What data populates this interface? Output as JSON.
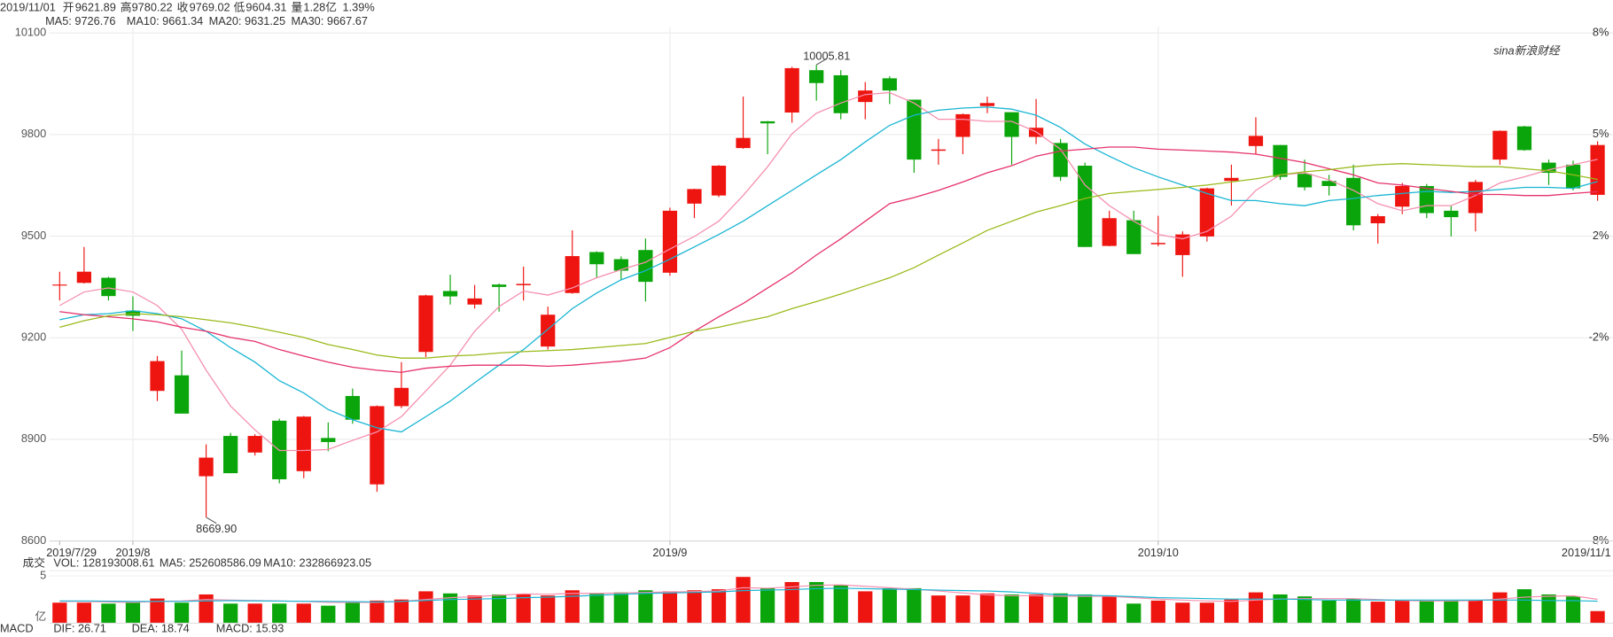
{
  "chart_data": {
    "type": "candlestick",
    "header": [
      {
        "text": "2019/11/01",
        "color": "#333333"
      },
      {
        "text": "开",
        "color": "#333333"
      },
      {
        "text": "9621.89",
        "color": "#0a9a0a"
      },
      {
        "text": "高",
        "color": "#333333"
      },
      {
        "text": "9780.22",
        "color": "#e8110f"
      },
      {
        "text": "收",
        "color": "#333333"
      },
      {
        "text": "9769.02",
        "color": "#e8110f"
      },
      {
        "text": "低",
        "color": "#333333"
      },
      {
        "text": "9604.31",
        "color": "#0a9a0a"
      },
      {
        "text": "量",
        "color": "#333333"
      },
      {
        "text": "1.28亿",
        "color": "#e8110f"
      },
      {
        "text": "1.39%",
        "color": "#e8110f"
      }
    ],
    "watermark": "sina新浪财经",
    "categories": [
      "2019/7/29",
      null,
      null,
      "2019/8",
      null,
      null,
      null,
      null,
      null,
      null,
      null,
      null,
      null,
      null,
      null,
      null,
      null,
      null,
      null,
      null,
      null,
      null,
      null,
      null,
      null,
      "2019/9",
      null,
      null,
      null,
      null,
      null,
      null,
      null,
      null,
      null,
      null,
      null,
      null,
      null,
      null,
      null,
      null,
      null,
      null,
      null,
      "2019/10",
      null,
      null,
      null,
      null,
      null,
      null,
      null,
      null,
      null,
      null,
      null,
      null,
      null,
      null,
      null,
      null,
      null,
      "2019/11/1"
    ],
    "month_lines": [
      3,
      25,
      45
    ],
    "open": [
      9355,
      9362,
      9377,
      9280,
      9043,
      9089,
      8791,
      8910,
      8861,
      8955,
      8806,
      8904,
      9028,
      8767,
      8998,
      9158,
      9338,
      9298,
      9357,
      9355,
      9174,
      9332,
      9453,
      9432,
      9459,
      9392,
      9596,
      9620,
      9760,
      9839,
      9865,
      9990,
      9975,
      9896,
      9966,
      9903,
      9752,
      9793,
      9884,
      9866,
      9793,
      9775,
      9708,
      9471,
      9547,
      9476,
      9444,
      9499,
      9663,
      9766,
      9769,
      9684,
      9663,
      9672,
      9538,
      9587,
      9648,
      9575,
      9568,
      9726,
      9824,
      9717,
      9711,
      9621.89
    ],
    "high": [
      9395,
      9468,
      9380,
      9322,
      9146,
      9162,
      8885,
      8919,
      8915,
      8961,
      8969,
      8950,
      9050,
      9000,
      9128,
      9327,
      9386,
      9356,
      9360,
      9410,
      9292,
      9517,
      9455,
      9440,
      9493,
      9584,
      9640,
      9710,
      9912,
      9840,
      10000,
      10005.81,
      9990,
      9955,
      9972,
      9903,
      9787,
      9862,
      9912,
      9866,
      9905,
      9787,
      9717,
      9575,
      9575,
      9560,
      9514,
      9643,
      9711,
      9851,
      9769,
      9726,
      9681,
      9711,
      9565,
      9657,
      9654,
      9590,
      9666,
      9812,
      9826,
      9726,
      9723,
      9780.22
    ],
    "low": [
      9310,
      9360,
      9310,
      9220,
      9013,
      8976,
      8669.9,
      8800,
      8852,
      8770,
      8785,
      8865,
      8946,
      8745,
      8992,
      9143,
      9298,
      9286,
      9277,
      9310,
      9165,
      9330,
      9377,
      9371,
      9307,
      9383,
      9553,
      9615,
      9758,
      9742,
      9835,
      9900,
      9845,
      9845,
      9890,
      9687,
      9711,
      9742,
      9863,
      9711,
      9772,
      9663,
      9468,
      9470,
      9447,
      9470,
      9380,
      9484,
      9590,
      9742,
      9666,
      9635,
      9620,
      9517,
      9478,
      9565,
      9553,
      9499,
      9514,
      9711,
      9752,
      9651,
      9635,
      9604.31
    ],
    "close": [
      9357,
      9395,
      9323,
      9265,
      9131,
      8976,
      8846,
      8800,
      8910,
      8782,
      8967,
      8892,
      8958,
      8998,
      9052,
      9325,
      9322,
      9316,
      9350,
      9359,
      9268,
      9441,
      9417,
      9398,
      9365,
      9575,
      9639,
      9708,
      9790,
      9833,
      9996,
      9952,
      9863,
      9930,
      9930,
      9726,
      9756,
      9860,
      9893,
      9793,
      9820,
      9675,
      9468,
      9553,
      9447,
      9480,
      9505,
      9641,
      9672,
      9796,
      9675,
      9644,
      9648,
      9532,
      9559,
      9648,
      9568,
      9556,
      9660,
      9811,
      9754,
      9687,
      9641,
      9769.02
    ],
    "up_color": "#ee1510",
    "down_color": "#0aa50a",
    "ma_lines": [
      {
        "legend": "MA5: 9726.76",
        "color": "#f58fae",
        "values": [
          9295,
          9335,
          9347,
          9335,
          9295,
          9225,
          9104,
          8998,
          8928,
          8867,
          8867,
          8870,
          8897,
          8922,
          8967,
          9043,
          9119,
          9219,
          9292,
          9338,
          9326,
          9347,
          9377,
          9401,
          9423,
          9462,
          9499,
          9544,
          9620,
          9705,
          9802,
          9863,
          9893,
          9918,
          9924,
          9893,
          9845,
          9845,
          9839,
          9839,
          9808,
          9757,
          9651,
          9590,
          9544,
          9505,
          9492,
          9514,
          9559,
          9635,
          9681,
          9687,
          9666,
          9635,
          9596,
          9575,
          9590,
          9590,
          9620,
          9657,
          9675,
          9696,
          9711,
          9726.76
        ]
      },
      {
        "legend": "MA10: 9661.34",
        "color": "#17b5d3",
        "values": [
          9253,
          9268,
          9271,
          9280,
          9271,
          9256,
          9219,
          9171,
          9128,
          9073,
          9037,
          8988,
          8958,
          8934,
          8922,
          8967,
          9013,
          9067,
          9119,
          9165,
          9225,
          9286,
          9332,
          9371,
          9398,
          9432,
          9468,
          9505,
          9544,
          9590,
          9635,
          9681,
          9726,
          9778,
          9827,
          9857,
          9872,
          9878,
          9881,
          9875,
          9857,
          9821,
          9772,
          9736,
          9702,
          9675,
          9651,
          9626,
          9605,
          9605,
          9596,
          9590,
          9605,
          9611,
          9620,
          9626,
          9632,
          9629,
          9632,
          9638,
          9644,
          9644,
          9641,
          9661.34
        ]
      },
      {
        "legend": "MA20: 9631.25",
        "color": "#e5316a",
        "values": [
          9277,
          9268,
          9262,
          9256,
          9247,
          9231,
          9219,
          9201,
          9189,
          9165,
          9146,
          9128,
          9113,
          9104,
          9098,
          9110,
          9116,
          9119,
          9119,
          9119,
          9116,
          9119,
          9125,
          9131,
          9140,
          9171,
          9219,
          9262,
          9301,
          9347,
          9392,
          9444,
          9492,
          9544,
          9596,
          9614,
          9635,
          9660,
          9687,
          9708,
          9736,
          9751,
          9757,
          9763,
          9763,
          9757,
          9754,
          9751,
          9748,
          9742,
          9730,
          9717,
          9699,
          9681,
          9657,
          9651,
          9641,
          9632,
          9623,
          9623,
          9620,
          9620,
          9626,
          9631.25
        ]
      },
      {
        "legend": "MA30: 9667.67",
        "color": "#9aba1c",
        "values": [
          9231,
          9250,
          9265,
          9271,
          9268,
          9262,
          9253,
          9244,
          9231,
          9216,
          9201,
          9180,
          9165,
          9149,
          9140,
          9140,
          9146,
          9149,
          9155,
          9159,
          9162,
          9165,
          9171,
          9177,
          9183,
          9201,
          9219,
          9231,
          9247,
          9262,
          9286,
          9307,
          9329,
          9353,
          9377,
          9407,
          9444,
          9480,
          9517,
          9544,
          9571,
          9590,
          9611,
          9626,
          9632,
          9638,
          9644,
          9651,
          9660,
          9669,
          9681,
          9690,
          9696,
          9705,
          9711,
          9714,
          9711,
          9708,
          9705,
          9705,
          9699,
          9693,
          9681,
          9667.67
        ]
      }
    ],
    "annotations": {
      "high": "10005.81",
      "low": "8669.90"
    },
    "ylim": [
      8600,
      10100
    ],
    "yticks": [
      8600,
      8900,
      9200,
      9500,
      9800,
      10100
    ],
    "y2lim": [
      -8,
      8
    ],
    "y2ticks": [
      {
        "value": 8,
        "label": "8%"
      },
      {
        "value": 4.8,
        "label": "5%"
      },
      {
        "value": 1.6,
        "label": "2%"
      },
      {
        "value": -1.6,
        "label": "-2%"
      },
      {
        "value": -4.8,
        "label": "-5%"
      },
      {
        "value": -8,
        "label": "-8%"
      }
    ],
    "grid": true,
    "volume": {
      "legend": [
        {
          "text": "成交",
          "color": "#999999"
        },
        {
          "text": "VOL: 128193008.61",
          "color": "#999999"
        },
        {
          "text": "MA5: 252608586.09",
          "color": "#f58fae"
        },
        {
          "text": "MA10: 232866923.05",
          "color": "#17b5d3"
        }
      ],
      "unit": "亿",
      "ylim": [
        0,
        5
      ],
      "yticks": [
        5
      ],
      "values": [
        2.17,
        2.17,
        2.07,
        2.17,
        2.61,
        2.17,
        3.04,
        2.07,
        2.07,
        2.07,
        2.07,
        1.85,
        2.17,
        2.39,
        2.5,
        3.37,
        3.15,
        2.93,
        3.04,
        3.04,
        2.93,
        3.48,
        3.15,
        3.26,
        3.48,
        3.37,
        3.48,
        3.59,
        4.89,
        3.7,
        4.35,
        4.35,
        4.02,
        3.37,
        3.7,
        3.7,
        2.93,
        2.93,
        3.15,
        3.04,
        3.04,
        3.15,
        3.04,
        2.93,
        2.07,
        2.39,
        2.17,
        2.17,
        2.5,
        3.26,
        3.04,
        2.83,
        2.39,
        2.61,
        2.28,
        2.39,
        2.39,
        2.39,
        2.39,
        3.26,
        3.59,
        3.04,
        2.83,
        1.2819300861
      ],
      "ma_lines": [
        {
          "color": "#f58fae",
          "values": [
            2.3,
            2.3,
            2.25,
            2.2,
            2.3,
            2.35,
            2.5,
            2.45,
            2.4,
            2.35,
            2.3,
            2.2,
            2.2,
            2.2,
            2.3,
            2.5,
            2.7,
            2.8,
            2.95,
            3.1,
            3.05,
            3.15,
            3.15,
            3.2,
            3.25,
            3.3,
            3.35,
            3.4,
            3.75,
            3.7,
            3.85,
            4.0,
            4.05,
            3.9,
            3.75,
            3.6,
            3.4,
            3.2,
            3.0,
            2.9,
            2.9,
            2.85,
            2.85,
            2.85,
            2.7,
            2.55,
            2.45,
            2.35,
            2.3,
            2.45,
            2.55,
            2.6,
            2.6,
            2.6,
            2.5,
            2.4,
            2.35,
            2.35,
            2.4,
            2.55,
            2.75,
            2.85,
            2.9,
            2.5260858609
          ]
        },
        {
          "color": "#17b5d3",
          "values": [
            2.35,
            2.35,
            2.33,
            2.3,
            2.3,
            2.3,
            2.35,
            2.38,
            2.36,
            2.34,
            2.32,
            2.3,
            2.28,
            2.25,
            2.3,
            2.4,
            2.5,
            2.55,
            2.6,
            2.7,
            2.75,
            2.85,
            2.95,
            3.05,
            3.15,
            3.2,
            3.25,
            3.3,
            3.45,
            3.5,
            3.55,
            3.65,
            3.7,
            3.65,
            3.6,
            3.55,
            3.5,
            3.45,
            3.4,
            3.3,
            3.15,
            3.0,
            2.95,
            2.9,
            2.8,
            2.7,
            2.65,
            2.6,
            2.55,
            2.55,
            2.55,
            2.5,
            2.45,
            2.45,
            2.45,
            2.45,
            2.45,
            2.45,
            2.45,
            2.45,
            2.45,
            2.4,
            2.38,
            2.3286692305
          ]
        }
      ]
    },
    "macd_legend": [
      {
        "text": "MACD",
        "color": "#555555"
      },
      {
        "text": "DIF: 26.71",
        "color": "#5b5bf0"
      },
      {
        "text": "DEA: 18.74",
        "color": "#dd3fdd"
      },
      {
        "text": "MACD: 15.93",
        "color": "#e8612c"
      }
    ]
  }
}
